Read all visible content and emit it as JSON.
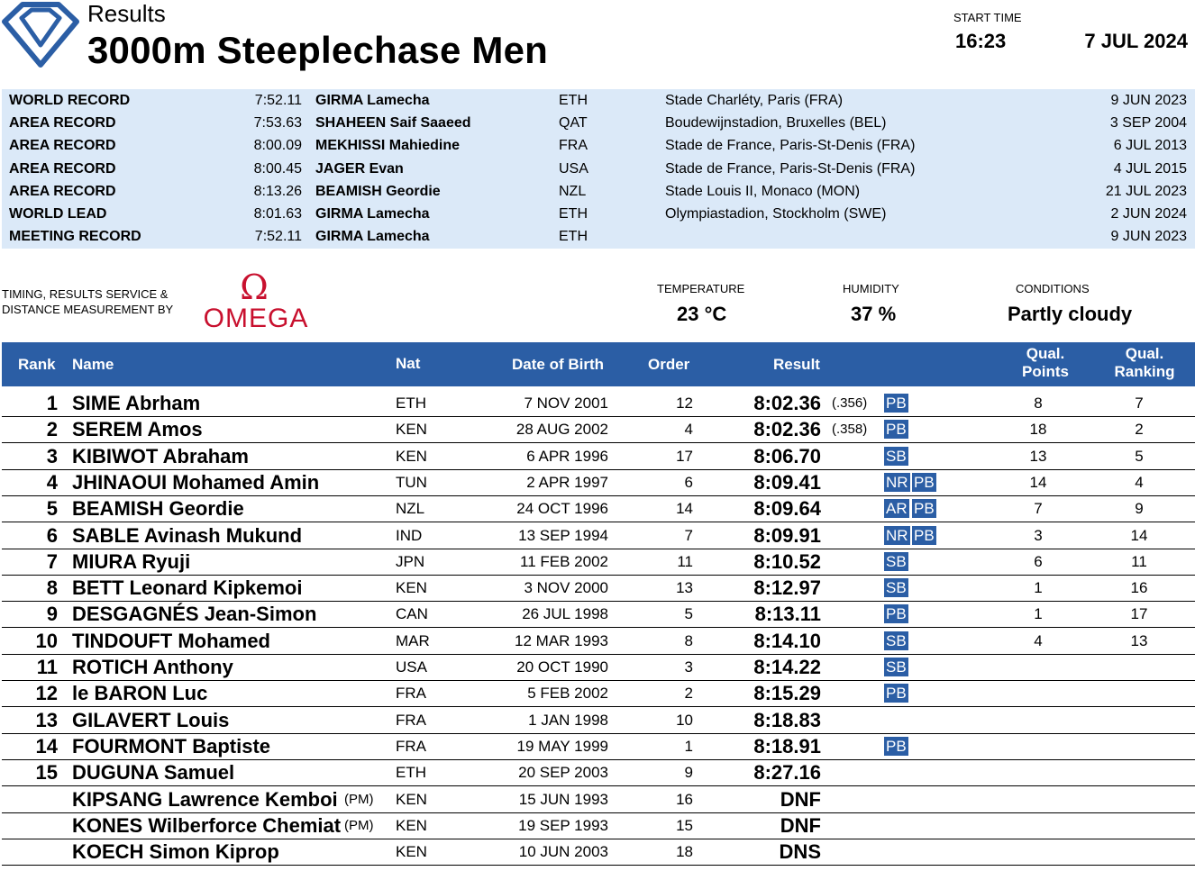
{
  "header": {
    "results_label": "Results",
    "event_title": "3000m Steeplechase Men",
    "start_time_label": "START TIME",
    "start_time": "16:23",
    "date": "7 JUL 2024"
  },
  "records": [
    {
      "type": "WORLD RECORD",
      "time": "7:52.11",
      "name": "GIRMA Lamecha",
      "nat": "ETH",
      "venue": "Stade Charléty, Paris (FRA)",
      "date": "9 JUN 2023"
    },
    {
      "type": "AREA RECORD",
      "time": "7:53.63",
      "name": "SHAHEEN Saif Saaeed",
      "nat": "QAT",
      "venue": "Boudewijnstadion, Bruxelles (BEL)",
      "date": "3 SEP 2004"
    },
    {
      "type": "AREA RECORD",
      "time": "8:00.09",
      "name": "MEKHISSI Mahiedine",
      "nat": "FRA",
      "venue": "Stade de France, Paris-St-Denis (FRA)",
      "date": "6 JUL 2013"
    },
    {
      "type": "AREA RECORD",
      "time": "8:00.45",
      "name": "JAGER Evan",
      "nat": "USA",
      "venue": "Stade de France, Paris-St-Denis (FRA)",
      "date": "4 JUL 2015"
    },
    {
      "type": "AREA RECORD",
      "time": "8:13.26",
      "name": "BEAMISH Geordie",
      "nat": "NZL",
      "venue": "Stade Louis II, Monaco (MON)",
      "date": "21 JUL 2023"
    },
    {
      "type": "WORLD LEAD",
      "time": "8:01.63",
      "name": "GIRMA Lamecha",
      "nat": "ETH",
      "venue": "Olympiastadion, Stockholm (SWE)",
      "date": "2 JUN 2024"
    },
    {
      "type": "MEETING RECORD",
      "time": "7:52.11",
      "name": "GIRMA Lamecha",
      "nat": "ETH",
      "venue": "",
      "date": "9 JUN 2023"
    }
  ],
  "sponsor": {
    "timing_line1": "TIMING, RESULTS SERVICE &",
    "timing_line2": "DISTANCE MEASUREMENT BY",
    "omega_symbol": "Ω",
    "omega_word": "OMEGA",
    "omega_color": "#c8102e"
  },
  "conditions": {
    "temperature_label": "TEMPERATURE",
    "temperature": "23 °C",
    "humidity_label": "HUMIDITY",
    "humidity": "37 %",
    "conditions_label": "CONDITIONS",
    "conditions": "Partly cloudy"
  },
  "table": {
    "headers": {
      "rank": "Rank",
      "name": "Name",
      "nat": "Nat",
      "dob": "Date of Birth",
      "order": "Order",
      "result": "Result",
      "qual_points_1": "Qual.",
      "qual_points_2": "Points",
      "qual_ranking_1": "Qual.",
      "qual_ranking_2": "Ranking"
    },
    "rows": [
      {
        "rank": "1",
        "name": "SIME Abrham",
        "pm": "",
        "nat": "ETH",
        "dob": "7 NOV 2001",
        "order": "12",
        "result": "8:02.36",
        "tie": "(.356)",
        "b1": "PB",
        "b2": "",
        "qp": "8",
        "qr": "7"
      },
      {
        "rank": "2",
        "name": "SEREM Amos",
        "pm": "",
        "nat": "KEN",
        "dob": "28 AUG 2002",
        "order": "4",
        "result": "8:02.36",
        "tie": "(.358)",
        "b1": "PB",
        "b2": "",
        "qp": "18",
        "qr": "2"
      },
      {
        "rank": "3",
        "name": "KIBIWOT Abraham",
        "pm": "",
        "nat": "KEN",
        "dob": "6 APR 1996",
        "order": "17",
        "result": "8:06.70",
        "tie": "",
        "b1": "SB",
        "b2": "",
        "qp": "13",
        "qr": "5"
      },
      {
        "rank": "4",
        "name": "JHINAOUI Mohamed Amin",
        "pm": "",
        "nat": "TUN",
        "dob": "2 APR 1997",
        "order": "6",
        "result": "8:09.41",
        "tie": "",
        "b1": "NR",
        "b2": "PB",
        "qp": "14",
        "qr": "4"
      },
      {
        "rank": "5",
        "name": "BEAMISH Geordie",
        "pm": "",
        "nat": "NZL",
        "dob": "24 OCT 1996",
        "order": "14",
        "result": "8:09.64",
        "tie": "",
        "b1": "AR",
        "b2": "PB",
        "qp": "7",
        "qr": "9"
      },
      {
        "rank": "6",
        "name": "SABLE Avinash Mukund",
        "pm": "",
        "nat": "IND",
        "dob": "13 SEP 1994",
        "order": "7",
        "result": "8:09.91",
        "tie": "",
        "b1": "NR",
        "b2": "PB",
        "qp": "3",
        "qr": "14"
      },
      {
        "rank": "7",
        "name": "MIURA Ryuji",
        "pm": "",
        "nat": "JPN",
        "dob": "11 FEB 2002",
        "order": "11",
        "result": "8:10.52",
        "tie": "",
        "b1": "SB",
        "b2": "",
        "qp": "6",
        "qr": "11"
      },
      {
        "rank": "8",
        "name": "BETT Leonard Kipkemoi",
        "pm": "",
        "nat": "KEN",
        "dob": "3 NOV 2000",
        "order": "13",
        "result": "8:12.97",
        "tie": "",
        "b1": "SB",
        "b2": "",
        "qp": "1",
        "qr": "16"
      },
      {
        "rank": "9",
        "name": "DESGAGNÉS Jean-Simon",
        "pm": "",
        "nat": "CAN",
        "dob": "26 JUL 1998",
        "order": "5",
        "result": "8:13.11",
        "tie": "",
        "b1": "PB",
        "b2": "",
        "qp": "1",
        "qr": "17"
      },
      {
        "rank": "10",
        "name": "TINDOUFT Mohamed",
        "pm": "",
        "nat": "MAR",
        "dob": "12 MAR 1993",
        "order": "8",
        "result": "8:14.10",
        "tie": "",
        "b1": "SB",
        "b2": "",
        "qp": "4",
        "qr": "13"
      },
      {
        "rank": "11",
        "name": "ROTICH Anthony",
        "pm": "",
        "nat": "USA",
        "dob": "20 OCT 1990",
        "order": "3",
        "result": "8:14.22",
        "tie": "",
        "b1": "SB",
        "b2": "",
        "qp": "",
        "qr": ""
      },
      {
        "rank": "12",
        "name": "le BARON Luc",
        "pm": "",
        "nat": "FRA",
        "dob": "5 FEB 2002",
        "order": "2",
        "result": "8:15.29",
        "tie": "",
        "b1": "PB",
        "b2": "",
        "qp": "",
        "qr": ""
      },
      {
        "rank": "13",
        "name": "GILAVERT Louis",
        "pm": "",
        "nat": "FRA",
        "dob": "1 JAN 1998",
        "order": "10",
        "result": "8:18.83",
        "tie": "",
        "b1": "",
        "b2": "",
        "qp": "",
        "qr": ""
      },
      {
        "rank": "14",
        "name": "FOURMONT Baptiste",
        "pm": "",
        "nat": "FRA",
        "dob": "19 MAY 1999",
        "order": "1",
        "result": "8:18.91",
        "tie": "",
        "b1": "PB",
        "b2": "",
        "qp": "",
        "qr": ""
      },
      {
        "rank": "15",
        "name": "DUGUNA Samuel",
        "pm": "",
        "nat": "ETH",
        "dob": "20 SEP 2003",
        "order": "9",
        "result": "8:27.16",
        "tie": "",
        "b1": "",
        "b2": "",
        "qp": "",
        "qr": ""
      },
      {
        "rank": "",
        "name": "KIPSANG Lawrence Kemboi",
        "pm": "(PM)",
        "nat": "KEN",
        "dob": "15 JUN 1993",
        "order": "16",
        "result": "DNF",
        "tie": "",
        "b1": "",
        "b2": "",
        "qp": "",
        "qr": ""
      },
      {
        "rank": "",
        "name": "KONES Wilberforce Chemiat",
        "pm": "(PM)",
        "nat": "KEN",
        "dob": "19 SEP 1993",
        "order": "15",
        "result": "DNF",
        "tie": "",
        "b1": "",
        "b2": "",
        "qp": "",
        "qr": ""
      },
      {
        "rank": "",
        "name": "KOECH Simon Kiprop",
        "pm": "",
        "nat": "KEN",
        "dob": "10 JUN 2003",
        "order": "18",
        "result": "DNS",
        "tie": "",
        "b1": "",
        "b2": "",
        "qp": "",
        "qr": ""
      }
    ]
  },
  "colors": {
    "header_blue": "#2b5ea5",
    "records_bg": "#dbe9f8",
    "badge_bg": "#2b5ea5"
  }
}
